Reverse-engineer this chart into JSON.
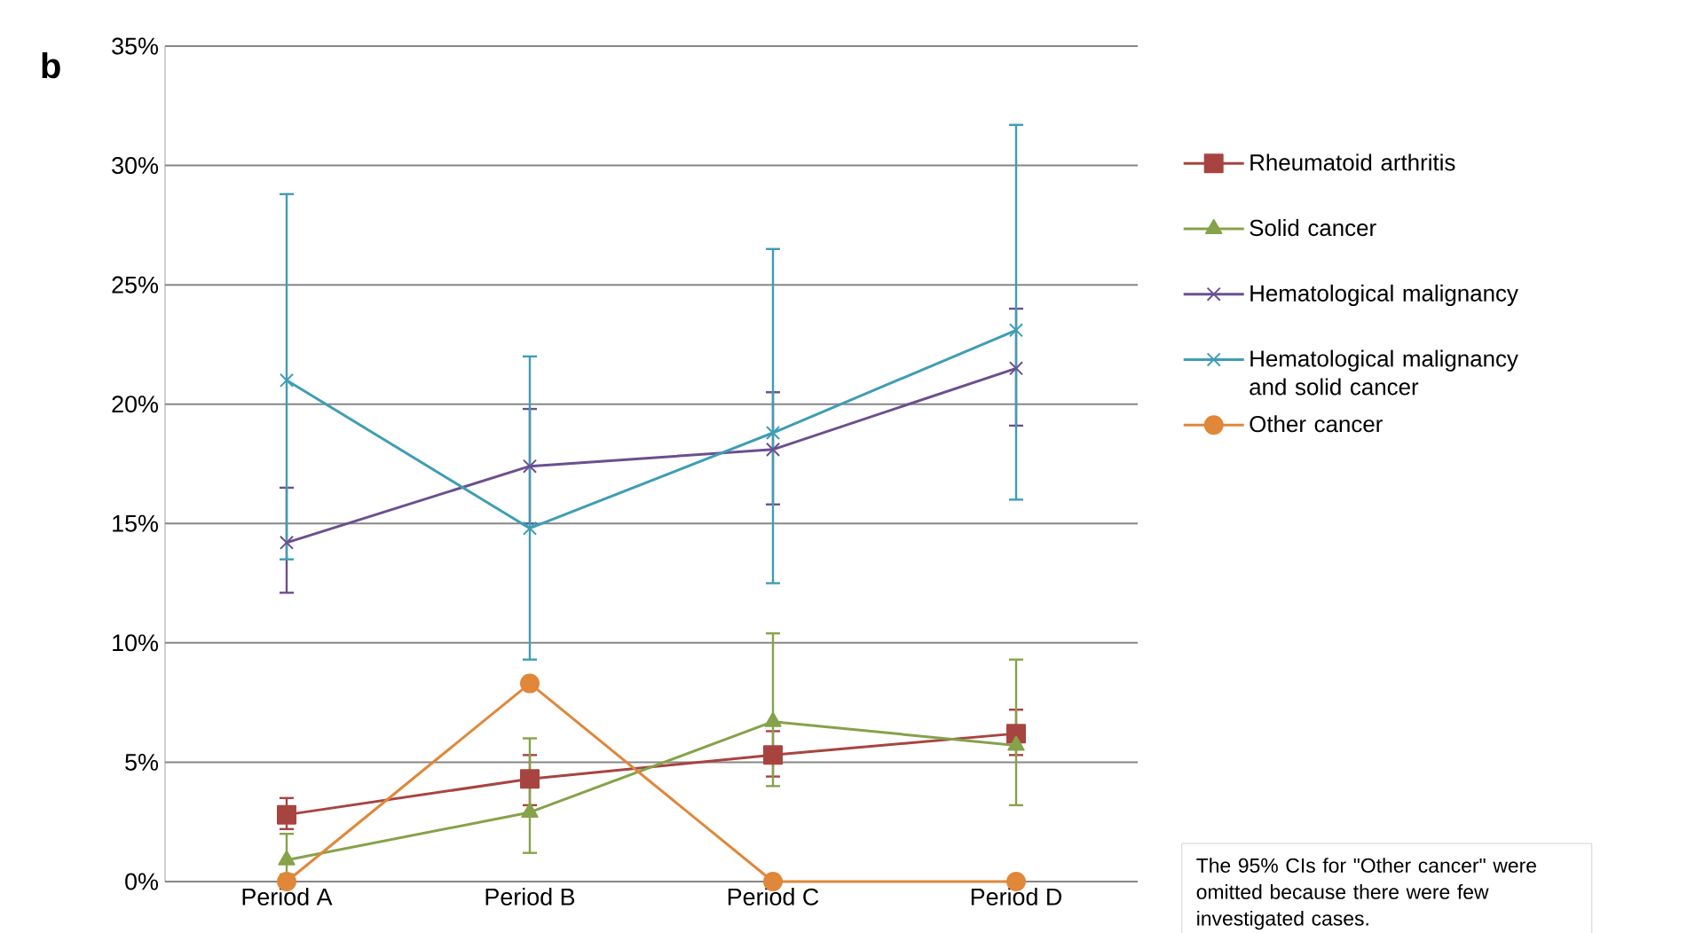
{
  "chart_data": {
    "type": "line",
    "categories": [
      "Period A",
      "Period B",
      "Period C",
      "Period D"
    ],
    "series": [
      {
        "name": "Rheumatoid arthritis",
        "color": "#a84440",
        "marker": "square",
        "values": [
          2.8,
          4.3,
          5.3,
          6.2
        ],
        "errors": [
          [
            2.2,
            3.5
          ],
          [
            3.2,
            5.3
          ],
          [
            4.4,
            6.3
          ],
          [
            5.3,
            7.2
          ]
        ]
      },
      {
        "name": "Solid cancer",
        "color": "#86a24a",
        "marker": "triangle",
        "values": [
          0.9,
          2.9,
          6.7,
          5.7
        ],
        "errors": [
          [
            0.3,
            2.0
          ],
          [
            1.2,
            6.0
          ],
          [
            4.0,
            10.4
          ],
          [
            3.2,
            9.3
          ]
        ]
      },
      {
        "name": "Hematological malignancy",
        "color": "#6b4f8f",
        "marker": "cross",
        "values": [
          14.2,
          17.4,
          18.1,
          21.5
        ],
        "errors": [
          [
            12.1,
            16.5
          ],
          [
            15.0,
            19.8
          ],
          [
            15.8,
            20.5
          ],
          [
            19.1,
            24.0
          ]
        ]
      },
      {
        "name": "Hematological malignancy and solid cancer",
        "color": "#3f9db5",
        "marker": "cross",
        "values": [
          21.0,
          14.8,
          18.8,
          23.1
        ],
        "errors": [
          [
            13.5,
            28.8
          ],
          [
            9.3,
            22.0
          ],
          [
            12.5,
            26.5
          ],
          [
            16.0,
            31.7
          ]
        ]
      },
      {
        "name": "Other cancer",
        "color": "#e0873a",
        "marker": "circle",
        "values": [
          0,
          8.3,
          0,
          0
        ]
      }
    ],
    "ylim": [
      0,
      35
    ],
    "yticks": [
      {
        "value": 0,
        "label": "0%"
      },
      {
        "value": 5,
        "label": "5%"
      },
      {
        "value": 10,
        "label": "10%"
      },
      {
        "value": 15,
        "label": "15%"
      },
      {
        "value": 20,
        "label": "20%"
      },
      {
        "value": 25,
        "label": "25%"
      },
      {
        "value": 30,
        "label": "30%"
      },
      {
        "value": 35,
        "label": "35%"
      }
    ],
    "grid": "y",
    "legend": "right",
    "line_style": "solid",
    "annotations": [
      "b",
      "The 95% CIs for \"Other cancer\" were omitted because there were few investigated cases."
    ]
  }
}
